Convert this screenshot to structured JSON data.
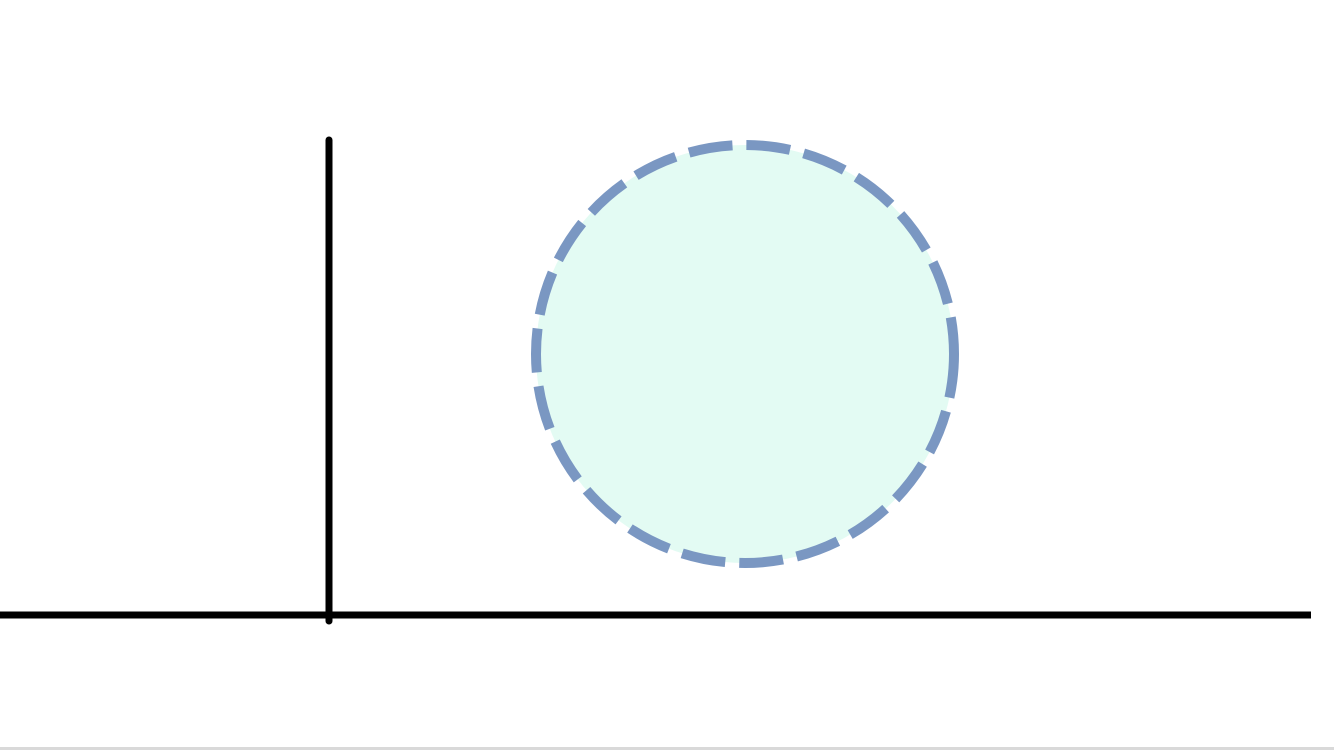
{
  "diagram": {
    "colors": {
      "background": "#ffffff",
      "axis_lines": "#000000",
      "circle_fill": "#e3fbf3",
      "circle_stroke": "#7a97c2",
      "bottom_edge": "#d9d9d9"
    },
    "circle_border_style": "dashed"
  }
}
